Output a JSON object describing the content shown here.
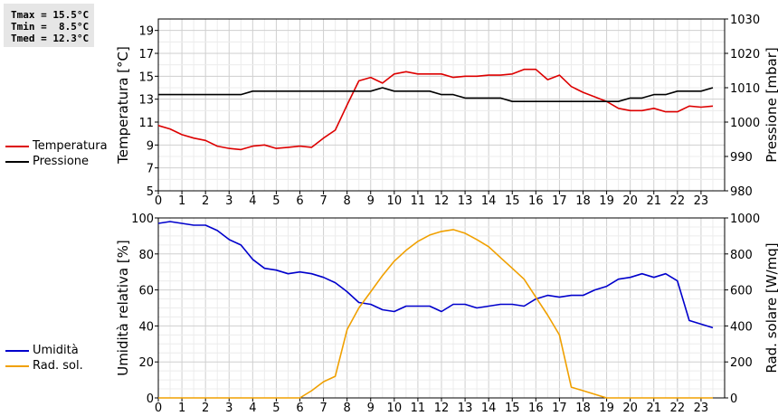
{
  "stats": {
    "tmax": "Tmax = 15.5°C",
    "tmin": "Tmin =  8.5°C",
    "tmed": "Tmed = 12.3°C"
  },
  "legend_top": [
    {
      "label": "Temperatura",
      "color": "#dd0000"
    },
    {
      "label": "Pressione",
      "color": "#000000"
    }
  ],
  "legend_bottom": [
    {
      "label": "Umidità",
      "color": "#0000cc"
    },
    {
      "label": "Rad. sol.",
      "color": "#f0a000"
    }
  ],
  "chart_data": [
    {
      "type": "line",
      "xlabel": "",
      "x_ticks": [
        "0",
        "1",
        "2",
        "3",
        "4",
        "5",
        "6",
        "7",
        "8",
        "9",
        "10",
        "11",
        "12",
        "13",
        "14",
        "15",
        "16",
        "17",
        "18",
        "19",
        "20",
        "21",
        "22",
        "23"
      ],
      "xlim": [
        0,
        24
      ],
      "ylabel": "Temperatura [°C]",
      "ylim": [
        5,
        20
      ],
      "y_ticks": [
        5,
        7,
        9,
        11,
        13,
        15,
        17,
        19
      ],
      "y2label": "Pressione [mbar]",
      "y2lim": [
        980,
        1030
      ],
      "y2_ticks": [
        980,
        990,
        1000,
        1010,
        1020,
        1030
      ],
      "grid": true,
      "series": [
        {
          "name": "Temperatura",
          "axis": "left",
          "color": "#dd0000",
          "points": [
            [
              0,
              10.7
            ],
            [
              0.5,
              10.4
            ],
            [
              1,
              9.9
            ],
            [
              1.5,
              9.6
            ],
            [
              2,
              9.4
            ],
            [
              2.5,
              8.9
            ],
            [
              3,
              8.7
            ],
            [
              3.5,
              8.6
            ],
            [
              4,
              8.9
            ],
            [
              4.5,
              9.0
            ],
            [
              5,
              8.7
            ],
            [
              5.5,
              8.8
            ],
            [
              6,
              8.9
            ],
            [
              6.5,
              8.8
            ],
            [
              7,
              9.6
            ],
            [
              7.5,
              10.3
            ],
            [
              8,
              12.5
            ],
            [
              8.5,
              14.6
            ],
            [
              9,
              14.9
            ],
            [
              9.5,
              14.4
            ],
            [
              10,
              15.2
            ],
            [
              10.5,
              15.4
            ],
            [
              11,
              15.2
            ],
            [
              11.5,
              15.2
            ],
            [
              12,
              15.2
            ],
            [
              12.5,
              14.9
            ],
            [
              13,
              15.0
            ],
            [
              13.5,
              15.0
            ],
            [
              14,
              15.1
            ],
            [
              14.5,
              15.1
            ],
            [
              15,
              15.2
            ],
            [
              15.5,
              15.6
            ],
            [
              16,
              15.6
            ],
            [
              16.5,
              14.7
            ],
            [
              17,
              15.1
            ],
            [
              17.5,
              14.1
            ],
            [
              18,
              13.6
            ],
            [
              18.5,
              13.2
            ],
            [
              19,
              12.8
            ],
            [
              19.5,
              12.2
            ],
            [
              20,
              12.0
            ],
            [
              20.5,
              12.0
            ],
            [
              21,
              12.2
            ],
            [
              21.5,
              11.9
            ],
            [
              22,
              11.9
            ],
            [
              22.5,
              12.4
            ],
            [
              23,
              12.3
            ],
            [
              23.5,
              12.4
            ]
          ]
        },
        {
          "name": "Pressione",
          "axis": "right",
          "color": "#000000",
          "points": [
            [
              0,
              1008
            ],
            [
              1,
              1008
            ],
            [
              2,
              1008
            ],
            [
              3,
              1008
            ],
            [
              3.5,
              1008
            ],
            [
              4,
              1009
            ],
            [
              5,
              1009
            ],
            [
              6,
              1009
            ],
            [
              7,
              1009
            ],
            [
              8,
              1009
            ],
            [
              9,
              1009
            ],
            [
              9.5,
              1010
            ],
            [
              10,
              1009
            ],
            [
              11,
              1009
            ],
            [
              11.5,
              1009
            ],
            [
              12,
              1008
            ],
            [
              12.5,
              1008
            ],
            [
              13,
              1007
            ],
            [
              14,
              1007
            ],
            [
              14.5,
              1007
            ],
            [
              15,
              1006
            ],
            [
              16,
              1006
            ],
            [
              17,
              1006
            ],
            [
              18,
              1006
            ],
            [
              19,
              1006
            ],
            [
              19.5,
              1006
            ],
            [
              20,
              1007
            ],
            [
              20.5,
              1007
            ],
            [
              21,
              1008
            ],
            [
              21.5,
              1008
            ],
            [
              22,
              1009
            ],
            [
              23,
              1009
            ],
            [
              23.5,
              1010
            ]
          ]
        }
      ]
    },
    {
      "type": "line",
      "xlabel": "",
      "x_ticks": [
        "0",
        "1",
        "2",
        "3",
        "4",
        "5",
        "6",
        "7",
        "8",
        "9",
        "10",
        "11",
        "12",
        "13",
        "14",
        "15",
        "16",
        "17",
        "18",
        "19",
        "20",
        "21",
        "22",
        "23"
      ],
      "xlim": [
        0,
        24
      ],
      "ylabel": "Umidità relativa [%]",
      "ylim": [
        0,
        100
      ],
      "y_ticks": [
        0,
        20,
        40,
        60,
        80,
        100
      ],
      "y2label": "Rad. solare [W/mq]",
      "y2lim": [
        0,
        1000
      ],
      "y2_ticks": [
        0,
        200,
        400,
        600,
        800,
        1000
      ],
      "grid": true,
      "series": [
        {
          "name": "Umidità",
          "axis": "left",
          "color": "#0000cc",
          "points": [
            [
              0,
              97
            ],
            [
              0.5,
              98
            ],
            [
              1,
              97
            ],
            [
              1.5,
              96
            ],
            [
              2,
              96
            ],
            [
              2.5,
              93
            ],
            [
              3,
              88
            ],
            [
              3.5,
              85
            ],
            [
              4,
              77
            ],
            [
              4.5,
              72
            ],
            [
              5,
              71
            ],
            [
              5.5,
              69
            ],
            [
              6,
              70
            ],
            [
              6.5,
              69
            ],
            [
              7,
              67
            ],
            [
              7.5,
              64
            ],
            [
              8,
              59
            ],
            [
              8.5,
              53
            ],
            [
              9,
              52
            ],
            [
              9.5,
              49
            ],
            [
              10,
              48
            ],
            [
              10.5,
              51
            ],
            [
              11,
              51
            ],
            [
              11.5,
              51
            ],
            [
              12,
              48
            ],
            [
              12.5,
              52
            ],
            [
              13,
              52
            ],
            [
              13.5,
              50
            ],
            [
              14,
              51
            ],
            [
              14.5,
              52
            ],
            [
              15,
              52
            ],
            [
              15.5,
              51
            ],
            [
              16,
              55
            ],
            [
              16.5,
              57
            ],
            [
              17,
              56
            ],
            [
              17.5,
              57
            ],
            [
              18,
              57
            ],
            [
              18.5,
              60
            ],
            [
              19,
              62
            ],
            [
              19.5,
              66
            ],
            [
              20,
              67
            ],
            [
              20.5,
              69
            ],
            [
              21,
              67
            ],
            [
              21.5,
              69
            ],
            [
              22,
              65
            ],
            [
              22.5,
              43
            ],
            [
              23,
              41
            ],
            [
              23.5,
              39
            ]
          ]
        },
        {
          "name": "Rad. sol.",
          "axis": "right",
          "color": "#f0a000",
          "points": [
            [
              0,
              0
            ],
            [
              6,
              0
            ],
            [
              6.5,
              40
            ],
            [
              7,
              90
            ],
            [
              7.5,
              120
            ],
            [
              8,
              380
            ],
            [
              8.5,
              500
            ],
            [
              9,
              590
            ],
            [
              9.5,
              680
            ],
            [
              10,
              760
            ],
            [
              10.5,
              820
            ],
            [
              11,
              870
            ],
            [
              11.5,
              905
            ],
            [
              12,
              925
            ],
            [
              12.5,
              935
            ],
            [
              13,
              915
            ],
            [
              13.5,
              880
            ],
            [
              14,
              840
            ],
            [
              14.5,
              780
            ],
            [
              15,
              720
            ],
            [
              15.5,
              660
            ],
            [
              16,
              560
            ],
            [
              16.5,
              460
            ],
            [
              17,
              350
            ],
            [
              17.5,
              60
            ],
            [
              18,
              40
            ],
            [
              18.5,
              20
            ],
            [
              19,
              0
            ],
            [
              23.5,
              0
            ]
          ]
        }
      ]
    }
  ]
}
